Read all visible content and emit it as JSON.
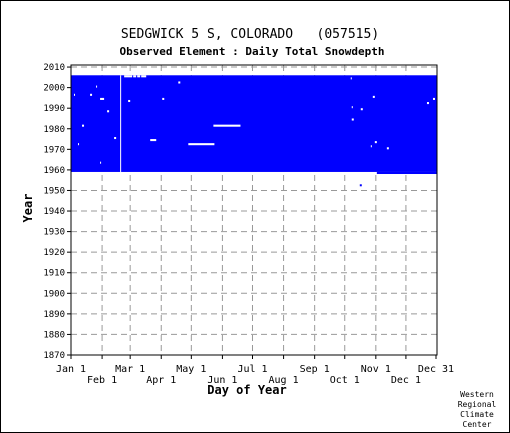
{
  "chart_data": {
    "type": "heatmap",
    "title": "SEDGWICK 5 S, COLORADO   (057515)",
    "subtitle": "Observed Element : Daily Total Snowdepth",
    "xlabel": "Day of Year",
    "ylabel": "Year",
    "xlim": [
      1,
      366
    ],
    "ylim": [
      1870,
      2011
    ],
    "grid": true,
    "data_color": "#0000ff",
    "x_ticks_top": [
      {
        "label": "Jan 1",
        "day": 1
      },
      {
        "label": "Mar 1",
        "day": 60
      },
      {
        "label": "May 1",
        "day": 121
      },
      {
        "label": "Jul 1",
        "day": 182
      },
      {
        "label": "Sep 1",
        "day": 244
      },
      {
        "label": "Nov 1",
        "day": 305
      },
      {
        "label": "Dec 31",
        "day": 365
      }
    ],
    "x_ticks_bottom": [
      {
        "label": "Feb 1",
        "day": 32
      },
      {
        "label": "Apr 1",
        "day": 91
      },
      {
        "label": "Jun 1",
        "day": 152
      },
      {
        "label": "Aug 1",
        "day": 213
      },
      {
        "label": "Oct 1",
        "day": 274
      },
      {
        "label": "Dec 1",
        "day": 335
      }
    ],
    "y_ticks": [
      1870,
      1880,
      1890,
      1900,
      1910,
      1920,
      1930,
      1940,
      1950,
      1960,
      1970,
      1980,
      1990,
      2000,
      2010
    ],
    "coverage_blocks": [
      {
        "day_start": 1,
        "day_end": 366,
        "year_start": 1959,
        "year_end": 2006
      },
      {
        "day_start": 306,
        "day_end": 366,
        "year_start": 1958,
        "year_end": 1959
      }
    ],
    "gaps": [
      {
        "day_start": 50,
        "day_end": 51,
        "year_start": 1959,
        "year_end": 2006
      },
      {
        "day_start": 54,
        "day_end": 62,
        "year_start": 2005,
        "year_end": 2006
      },
      {
        "day_start": 63,
        "day_end": 66,
        "year_start": 2005,
        "year_end": 2006
      },
      {
        "day_start": 67,
        "day_end": 70,
        "year_start": 2005,
        "year_end": 2006
      },
      {
        "day_start": 71,
        "day_end": 76,
        "year_start": 2005,
        "year_end": 2006
      },
      {
        "day_start": 80,
        "day_end": 86,
        "year_start": 1974,
        "year_end": 1975
      },
      {
        "day_start": 118,
        "day_end": 144,
        "year_start": 1972,
        "year_end": 1973
      },
      {
        "day_start": 143,
        "day_end": 170,
        "year_start": 1981,
        "year_end": 1982
      },
      {
        "day_start": 30,
        "day_end": 34,
        "year_start": 1994,
        "year_end": 1995
      },
      {
        "day_start": 37,
        "day_end": 39,
        "year_start": 1988,
        "year_end": 1989
      },
      {
        "day_start": 12,
        "day_end": 14,
        "year_start": 1981,
        "year_end": 1982
      },
      {
        "day_start": 20,
        "day_end": 22,
        "year_start": 1996,
        "year_end": 1997
      },
      {
        "day_start": 8,
        "day_end": 9,
        "year_start": 1972,
        "year_end": 1973
      },
      {
        "day_start": 26,
        "day_end": 27,
        "year_start": 2000,
        "year_end": 2001
      },
      {
        "day_start": 44,
        "day_end": 46,
        "year_start": 1975,
        "year_end": 1976
      },
      {
        "day_start": 58,
        "day_end": 60,
        "year_start": 1993,
        "year_end": 1994
      },
      {
        "day_start": 92,
        "day_end": 94,
        "year_start": 1994,
        "year_end": 1995
      },
      {
        "day_start": 108,
        "day_end": 110,
        "year_start": 2002,
        "year_end": 2003
      },
      {
        "day_start": 30,
        "day_end": 31,
        "year_start": 1963,
        "year_end": 1964
      },
      {
        "day_start": 4,
        "day_end": 5,
        "year_start": 1996,
        "year_end": 1997
      },
      {
        "day_start": 280,
        "day_end": 281,
        "year_start": 2004,
        "year_end": 2005
      },
      {
        "day_start": 281,
        "day_end": 282,
        "year_start": 1990,
        "year_end": 1991
      },
      {
        "day_start": 281,
        "day_end": 283,
        "year_start": 1984,
        "year_end": 1985
      },
      {
        "day_start": 290,
        "day_end": 292,
        "year_start": 1989,
        "year_end": 1990
      },
      {
        "day_start": 302,
        "day_end": 304,
        "year_start": 1995,
        "year_end": 1996
      },
      {
        "day_start": 300,
        "day_end": 301,
        "year_start": 1971,
        "year_end": 1972
      },
      {
        "day_start": 304,
        "day_end": 306,
        "year_start": 1973,
        "year_end": 1974
      },
      {
        "day_start": 316,
        "day_end": 318,
        "year_start": 1970,
        "year_end": 1971
      },
      {
        "day_start": 356,
        "day_end": 358,
        "year_start": 1992,
        "year_end": 1993
      },
      {
        "day_start": 362,
        "day_end": 364,
        "year_start": 1994,
        "year_end": 1995
      }
    ],
    "isolated_points": [
      {
        "day": 289,
        "year": 1952
      }
    ],
    "credit": [
      "Western",
      "Regional",
      "Climate",
      "Center"
    ]
  }
}
